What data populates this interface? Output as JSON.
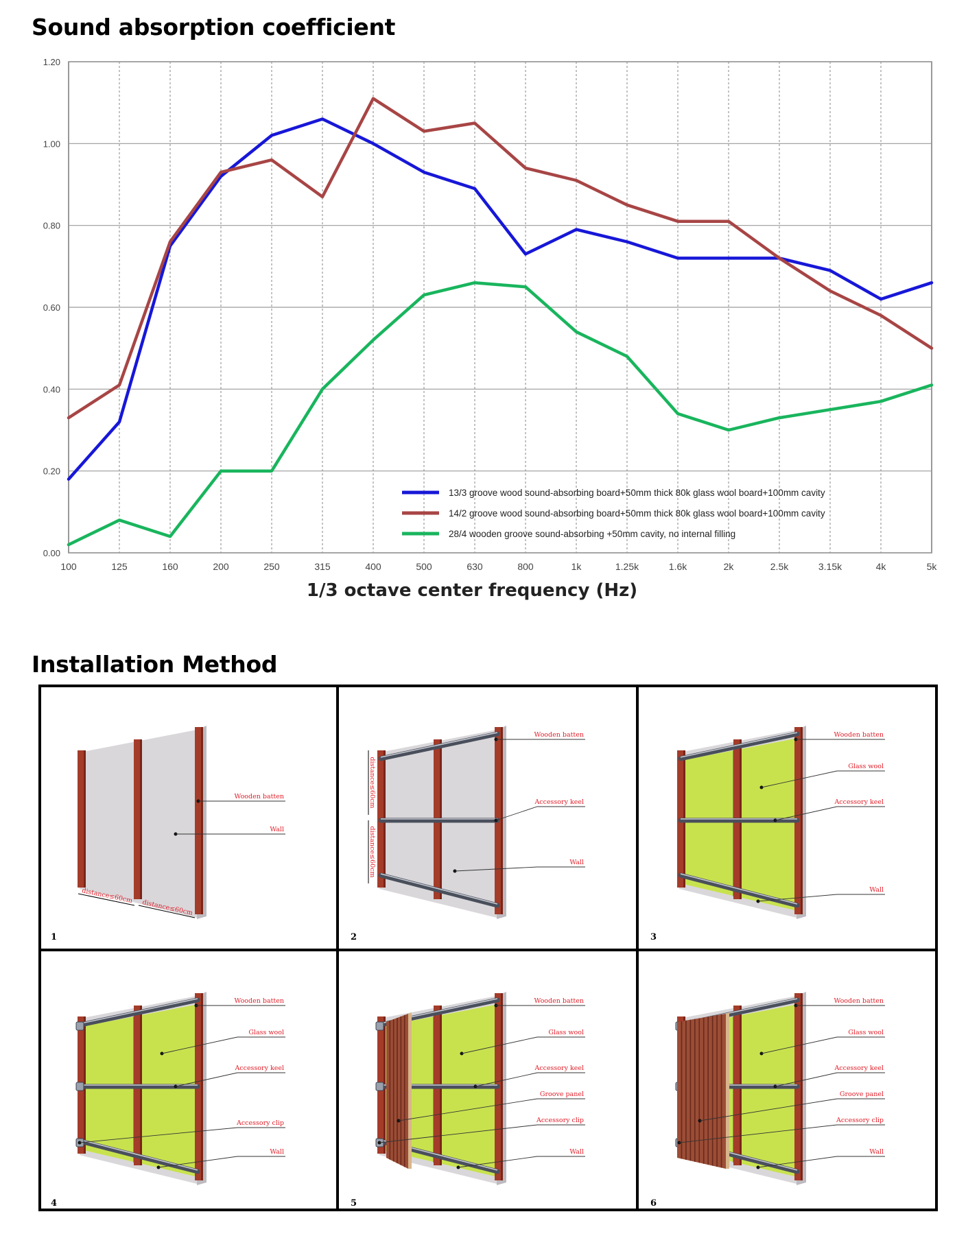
{
  "sections": {
    "sound_title": "Sound absorption coefficient",
    "install_title": "Installation Method"
  },
  "colors": {
    "series_blue": "#1717d8",
    "series_red": "#a84545",
    "series_green": "#19b55d",
    "wood": "#a43c2a",
    "glass_wool": "#c8e24e",
    "wall": "#d9d7da",
    "label_red": "#e0202a"
  },
  "chart_data": {
    "type": "line",
    "title": "",
    "xlabel": "1/3 octave center frequency (Hz)",
    "ylabel": "",
    "categories": [
      "100",
      "125",
      "160",
      "200",
      "250",
      "315",
      "400",
      "500",
      "630",
      "800",
      "1k",
      "1.25k",
      "1.6k",
      "2k",
      "2.5k",
      "3.15k",
      "4k",
      "5k"
    ],
    "yticks": [
      "0.00",
      "0.20",
      "0.40",
      "0.60",
      "0.80",
      "1.00",
      "1.20"
    ],
    "ylim": [
      0,
      1.2
    ],
    "grid": true,
    "legend_position": "bottom-right",
    "series": [
      {
        "name": "13/3 groove wood sound-absorbing board+50mm thick 80k glass wool board+100mm cavity",
        "color": "#1717d8",
        "values": [
          0.18,
          0.32,
          0.75,
          0.92,
          1.02,
          1.06,
          1.0,
          0.93,
          0.89,
          0.73,
          0.79,
          0.76,
          0.72,
          0.72,
          0.72,
          0.69,
          0.62,
          0.66
        ]
      },
      {
        "name": "14/2 groove wood sound-absorbing board+50mm thick 80k glass wool board+100mm cavity",
        "color": "#a84545",
        "values": [
          0.33,
          0.41,
          0.76,
          0.93,
          0.96,
          0.87,
          1.11,
          1.03,
          1.05,
          0.94,
          0.91,
          0.85,
          0.81,
          0.81,
          0.72,
          0.64,
          0.58,
          0.5
        ]
      },
      {
        "name": "28/4 wooden groove sound-absorbing +50mm cavity, no internal filling",
        "color": "#19b55d",
        "values": [
          0.02,
          0.08,
          0.04,
          0.2,
          0.2,
          0.4,
          0.52,
          0.63,
          0.66,
          0.65,
          0.54,
          0.48,
          0.34,
          0.3,
          0.33,
          0.35,
          0.37,
          0.41
        ]
      }
    ]
  },
  "installation": {
    "panels": [
      {
        "number": "1",
        "labels": [
          "Wooden batten",
          "Wall"
        ],
        "dims": [
          "distance≤60cm",
          "distance≤60cm"
        ]
      },
      {
        "number": "2",
        "labels": [
          "Wooden batten",
          "Accessory keel",
          "Wall"
        ],
        "dims": [
          "distance≤60cm",
          "distance≤60cm"
        ]
      },
      {
        "number": "3",
        "labels": [
          "Wooden batten",
          "Glass wool",
          "Accessory keel",
          "Wall"
        ]
      },
      {
        "number": "4",
        "labels": [
          "Wooden batten",
          "Glass wool",
          "Accessory keel",
          "Accessory clip",
          "Wall"
        ]
      },
      {
        "number": "5",
        "labels": [
          "Wooden batten",
          "Glass wool",
          "Accessory keel",
          "Groove panel",
          "Accessory clip",
          "Wall"
        ]
      },
      {
        "number": "6",
        "labels": [
          "Wooden batten",
          "Glass wool",
          "Accessory keel",
          "Groove panel",
          "Accessory clip",
          "Wall"
        ]
      }
    ]
  }
}
